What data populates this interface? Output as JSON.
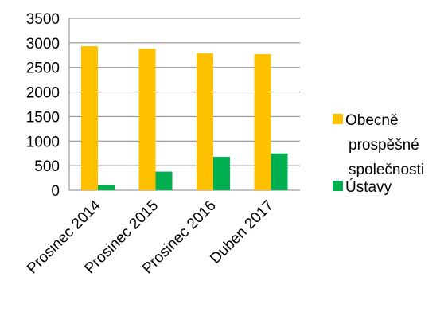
{
  "chart_data": {
    "type": "bar",
    "categories": [
      "Prosinec 2014",
      "Prosinec 2015",
      "Prosinec 2016",
      "Duben 2017"
    ],
    "series": [
      {
        "name": "Obecně prospěšné společnosti",
        "values": [
          2930,
          2880,
          2790,
          2770
        ],
        "color": "#FFC000"
      },
      {
        "name": "Ústavy",
        "values": [
          110,
          380,
          680,
          750
        ],
        "color": "#00B050"
      }
    ],
    "ylim": [
      0,
      3500
    ],
    "yticks": [
      0,
      500,
      1000,
      1500,
      2000,
      2500,
      3000,
      3500
    ],
    "grid": true,
    "legend_position": "right",
    "title": "",
    "xlabel": "",
    "ylabel": ""
  }
}
